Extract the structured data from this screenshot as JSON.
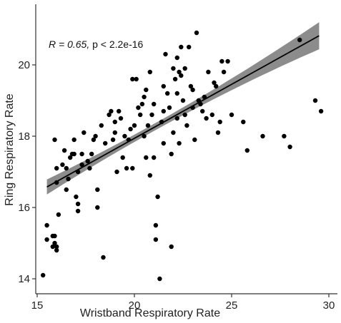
{
  "chart_data": {
    "type": "scatter",
    "xlabel": "Wristband Respiratory Rate",
    "ylabel": "Ring Respiratory Rate",
    "xlim": [
      15,
      30
    ],
    "ylim": [
      13.8,
      21.4
    ],
    "x_ticks": [
      "15",
      "20",
      "25",
      "30"
    ],
    "y_ticks": [
      "14",
      "16",
      "18",
      "20"
    ],
    "annotation": {
      "r_part": "R = 0.65, ",
      "p_part": "p < 2.2e-16"
    },
    "grid": false,
    "regression": {
      "slope": 0.303,
      "intercept": 11.88,
      "x_range": [
        15.5,
        29.5
      ],
      "ci_halfwidth_ends": 0.38,
      "ci_halfwidth_center": 0.1,
      "x_center": 20.9,
      "band_color": "#8c8c8c",
      "line_color": "#000000"
    },
    "point_color": "#000000",
    "points": [
      [
        15.3,
        14.1
      ],
      [
        15.5,
        15.5
      ],
      [
        15.5,
        15.1
      ],
      [
        15.8,
        15.2
      ],
      [
        15.9,
        15.0
      ],
      [
        16.0,
        14.9
      ],
      [
        16.0,
        14.8
      ],
      [
        15.9,
        15.2
      ],
      [
        15.8,
        14.9
      ],
      [
        16.1,
        15.8
      ],
      [
        16.0,
        16.7
      ],
      [
        16.0,
        17.1
      ],
      [
        15.9,
        17.9
      ],
      [
        16.3,
        17.2
      ],
      [
        16.4,
        17.6
      ],
      [
        16.5,
        17.1
      ],
      [
        16.5,
        16.5
      ],
      [
        16.6,
        16.8
      ],
      [
        16.7,
        17.4
      ],
      [
        16.8,
        17.5
      ],
      [
        16.9,
        17.5
      ],
      [
        16.9,
        17.9
      ],
      [
        17.0,
        16.3
      ],
      [
        17.1,
        16.1
      ],
      [
        17.1,
        15.9
      ],
      [
        17.1,
        17.0
      ],
      [
        17.3,
        17.2
      ],
      [
        17.3,
        17.5
      ],
      [
        17.4,
        18.1
      ],
      [
        17.6,
        17.3
      ],
      [
        17.7,
        17.1
      ],
      [
        17.8,
        17.5
      ],
      [
        17.9,
        17.9
      ],
      [
        18.0,
        18.0
      ],
      [
        18.1,
        16.5
      ],
      [
        18.1,
        16.0
      ],
      [
        18.3,
        18.3
      ],
      [
        18.4,
        14.6
      ],
      [
        18.5,
        17.8
      ],
      [
        18.7,
        18.6
      ],
      [
        18.8,
        18.7
      ],
      [
        18.9,
        17.9
      ],
      [
        19.0,
        18.1
      ],
      [
        19.0,
        18.4
      ],
      [
        19.1,
        17.0
      ],
      [
        19.2,
        18.7
      ],
      [
        19.3,
        18.5
      ],
      [
        19.4,
        17.4
      ],
      [
        19.5,
        18.0
      ],
      [
        19.6,
        17.1
      ],
      [
        19.7,
        17.9
      ],
      [
        19.8,
        18.2
      ],
      [
        19.9,
        17.1
      ],
      [
        19.9,
        19.6
      ],
      [
        20.0,
        18.3
      ],
      [
        20.1,
        19.6
      ],
      [
        20.2,
        18.8
      ],
      [
        20.3,
        18.6
      ],
      [
        20.4,
        18.9
      ],
      [
        20.5,
        18.0
      ],
      [
        20.5,
        19.1
      ],
      [
        20.6,
        17.4
      ],
      [
        20.6,
        19.3
      ],
      [
        20.7,
        18.3
      ],
      [
        20.8,
        16.9
      ],
      [
        20.8,
        19.8
      ],
      [
        20.9,
        18.6
      ],
      [
        21.0,
        18.9
      ],
      [
        21.0,
        17.4
      ],
      [
        21.1,
        15.1
      ],
      [
        21.1,
        15.5
      ],
      [
        21.2,
        16.3
      ],
      [
        21.3,
        14.0
      ],
      [
        21.4,
        18.4
      ],
      [
        21.5,
        18.7
      ],
      [
        21.5,
        17.8
      ],
      [
        21.5,
        19.4
      ],
      [
        21.6,
        20.3
      ],
      [
        21.7,
        19.2
      ],
      [
        21.8,
        18.8
      ],
      [
        21.9,
        17.5
      ],
      [
        21.9,
        14.9
      ],
      [
        22.0,
        19.9
      ],
      [
        22.0,
        18.1
      ],
      [
        22.1,
        19.6
      ],
      [
        22.2,
        19.2
      ],
      [
        22.2,
        18.5
      ],
      [
        22.2,
        20.2
      ],
      [
        22.3,
        19.8
      ],
      [
        22.3,
        17.8
      ],
      [
        22.4,
        19.7
      ],
      [
        22.4,
        20.5
      ],
      [
        22.5,
        19.0
      ],
      [
        22.6,
        19.9
      ],
      [
        22.6,
        18.6
      ],
      [
        22.7,
        18.3
      ],
      [
        22.8,
        20.5
      ],
      [
        22.9,
        19.4
      ],
      [
        23.0,
        19.3
      ],
      [
        23.0,
        18.8
      ],
      [
        23.1,
        17.9
      ],
      [
        23.2,
        20.9
      ],
      [
        23.3,
        19.0
      ],
      [
        23.4,
        18.9
      ],
      [
        23.5,
        18.7
      ],
      [
        23.6,
        19.1
      ],
      [
        23.7,
        18.5
      ],
      [
        23.8,
        19.8
      ],
      [
        24.0,
        18.6
      ],
      [
        24.1,
        19.5
      ],
      [
        24.2,
        19.4
      ],
      [
        24.3,
        18.1
      ],
      [
        24.4,
        18.4
      ],
      [
        24.5,
        20.1
      ],
      [
        24.6,
        19.8
      ],
      [
        24.8,
        20.1
      ],
      [
        25.0,
        18.6
      ],
      [
        25.6,
        18.4
      ],
      [
        25.8,
        17.6
      ],
      [
        26.6,
        18.0
      ],
      [
        27.7,
        18.0
      ],
      [
        28.0,
        17.7
      ],
      [
        28.5,
        20.7
      ],
      [
        29.3,
        19.0
      ],
      [
        29.6,
        18.7
      ]
    ]
  }
}
